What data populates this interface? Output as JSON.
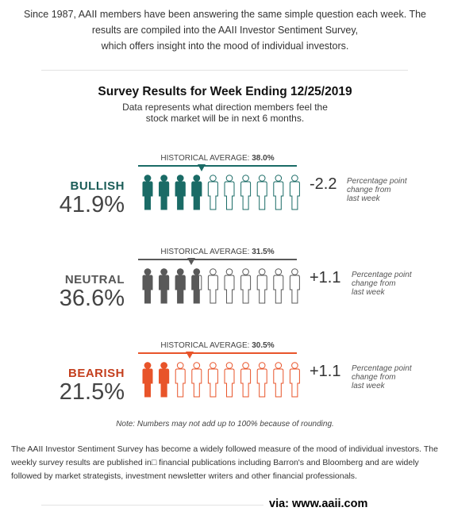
{
  "intro": [
    "Since 1987, AAII members have been answering the same simple question each week. The",
    "results are compiled into the AAII Investor Sentiment Survey,",
    "which offers insight into the mood of individual investors."
  ],
  "survey": {
    "title": "Survey Results for Week Ending 12/25/2019",
    "subtitle_lines": [
      "Data represents what direction members feel the",
      "stock market will be in next 6 months."
    ]
  },
  "hist_prefix": "HISTORICAL AVERAGE: ",
  "change_note_lines": [
    "Percentage point",
    "change from",
    "last week"
  ],
  "rows": [
    {
      "label": "BULLISH",
      "percent": "41.9%",
      "percent_value": 41.9,
      "hist_value": "38.0%",
      "hist_num": 38.0,
      "change": "-2.2",
      "color": "#1a6b66",
      "label_color": "#1a5c57"
    },
    {
      "label": "NEUTRAL",
      "percent": "36.6%",
      "percent_value": 36.6,
      "hist_value": "31.5%",
      "hist_num": 31.5,
      "change": "+1.1",
      "color": "#595959",
      "label_color": "#555555"
    },
    {
      "label": "BEARISH",
      "percent": "21.5%",
      "percent_value": 21.5,
      "hist_value": "30.5%",
      "hist_num": 30.5,
      "change": "+1.1",
      "color": "#e8542a",
      "label_color": "#c43f1e"
    }
  ],
  "note": "Note: Numbers may not add up to 100% because of rounding.",
  "description": "The AAII Investor Sentiment Survey has become a widely followed measure of the mood of individual investors. The weekly survey results are published in□ financial publications including Barron's and Bloomberg and are widely followed by market strategists, investment newsletter writers and other financial professionals.",
  "via": "via: www.aaii.com"
}
